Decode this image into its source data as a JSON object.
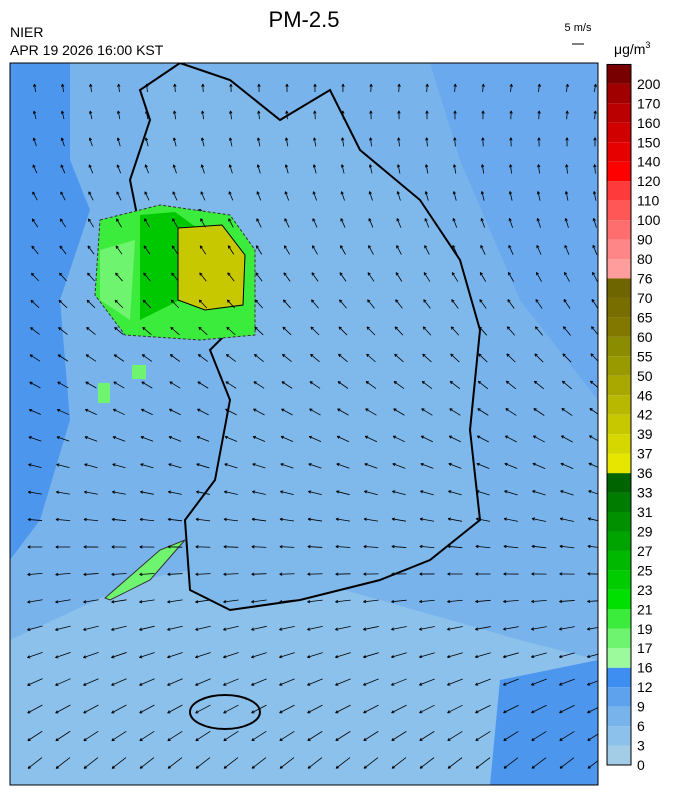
{
  "header": {
    "title": "PM-2.5",
    "agency": "NIER",
    "timestamp": "APR 19 2026 16:00 KST",
    "wind_scale": "5 m/s",
    "unit": "μg/m",
    "unit_exponent": "3"
  },
  "colorbar": {
    "levels": [
      0,
      3,
      6,
      9,
      12,
      16,
      17,
      19,
      21,
      23,
      25,
      27,
      29,
      31,
      33,
      36,
      37,
      39,
      42,
      46,
      50,
      55,
      60,
      65,
      70,
      76,
      80,
      90,
      100,
      110,
      120,
      140,
      150,
      160,
      170,
      200
    ],
    "colors": [
      "#a3cde6",
      "#8cc1ec",
      "#78b3ec",
      "#5ea2ee",
      "#3d8ef0",
      "#9cfa9c",
      "#6ef46e",
      "#3cec3c",
      "#00e000",
      "#00cc00",
      "#00b800",
      "#00a400",
      "#009000",
      "#007c00",
      "#006400",
      "#e6e600",
      "#d6d600",
      "#c8c800",
      "#b8b800",
      "#a8a800",
      "#999900",
      "#8c8c00",
      "#827800",
      "#786e00",
      "#6e6400",
      "#ff9c9c",
      "#ff8686",
      "#ff6e6e",
      "#ff5656",
      "#ff3a3a",
      "#ff0000",
      "#e60000",
      "#d00000",
      "#ba0000",
      "#a00000",
      "#780000"
    ]
  }
}
